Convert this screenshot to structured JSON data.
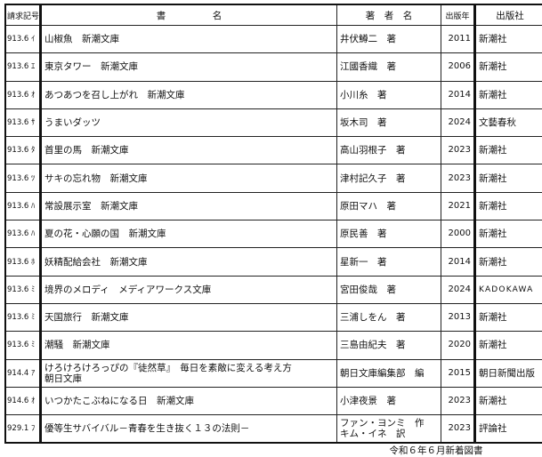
{
  "headers": {
    "call_number": "請求記号",
    "title": "書　　　　　名",
    "author": "著　者　名",
    "year": "出版年",
    "publisher": "出版社"
  },
  "rows": [
    {
      "call": "913.6 ｲ",
      "title": "山椒魚　新潮文庫",
      "author": "井伏鱒二　著",
      "year": "2011",
      "publisher": "新潮社"
    },
    {
      "call": "913.6 ｴ",
      "title": "東京タワー　新潮文庫",
      "author": "江國香織　著",
      "year": "2006",
      "publisher": "新潮社"
    },
    {
      "call": "913.6 ｵ",
      "title": "あつあつを召し上がれ　新潮文庫",
      "author": "小川糸　著",
      "year": "2014",
      "publisher": "新潮社"
    },
    {
      "call": "913.6 ｻ",
      "title": "うまいダッツ",
      "author": "坂木司　著",
      "year": "2024",
      "publisher": "文藝春秋"
    },
    {
      "call": "913.6 ﾀ",
      "title": "首里の馬　新潮文庫",
      "author": "高山羽根子　著",
      "year": "2023",
      "publisher": "新潮社"
    },
    {
      "call": "913.6 ﾂ",
      "title": "サキの忘れ物　新潮文庫",
      "author": "津村記久子　著",
      "year": "2023",
      "publisher": "新潮社"
    },
    {
      "call": "913.6 ﾊ",
      "title": "常設展示室　新潮文庫",
      "author": "原田マハ　著",
      "year": "2021",
      "publisher": "新潮社"
    },
    {
      "call": "913.6 ﾊ",
      "title": "夏の花・心願の国　新潮文庫",
      "author": "原民善　著",
      "year": "2000",
      "publisher": "新潮社"
    },
    {
      "call": "913.6 ﾎ",
      "title": "妖精配給会社　新潮文庫",
      "author": "星新一　著",
      "year": "2014",
      "publisher": "新潮社"
    },
    {
      "call": "913.6 ﾐ",
      "title": "境界のメロディ　メディアワークス文庫",
      "author": "宮田俊哉　著",
      "year": "2024",
      "publisher": "KADOKAWA"
    },
    {
      "call": "913.6 ﾐ",
      "title": "天国旅行　新潮文庫",
      "author": "三浦しをん　著",
      "year": "2013",
      "publisher": "新潮社"
    },
    {
      "call": "913.6 ﾐ",
      "title": "潮騒　新潮文庫",
      "author": "三島由紀夫　著",
      "year": "2020",
      "publisher": "新潮社"
    },
    {
      "call": "914.4 ｱ",
      "title": "けろけろけろっぴの『徒然草』　毎日を素敵に変える考え方",
      "title2": "朝日文庫",
      "author": "朝日文庫編集部　編",
      "year": "2015",
      "publisher": "朝日新聞出版"
    },
    {
      "call": "914.6 ｵ",
      "title": "いつかたこぶねになる日　新潮文庫",
      "author": "小津夜景　著",
      "year": "2023",
      "publisher": "新潮社"
    },
    {
      "call": "929.1 ﾌ",
      "title": "優等生サバイバル－青春を生き抜く１３の法則－",
      "author": "ファン・ヨンミ　作",
      "author2": "キム・イネ　訳",
      "year": "2023",
      "publisher": "評論社"
    }
  ],
  "footer": "令和６年６月新着図書"
}
